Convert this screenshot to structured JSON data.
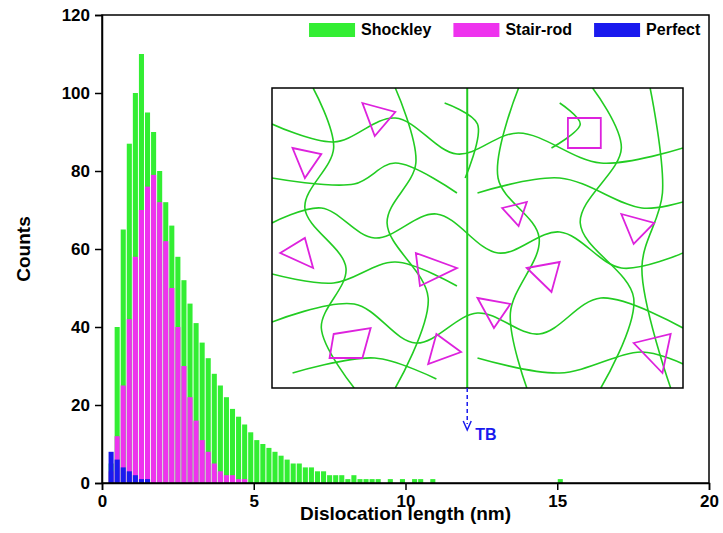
{
  "chart_data": {
    "type": "histogram",
    "x_label": "Dislocation length (nm)",
    "y_label": "Counts",
    "bins": [
      0,
      0.2,
      0.4,
      0.6,
      0.8,
      1,
      1.2,
      1.4,
      1.6,
      1.8,
      2,
      2.2,
      2.4,
      2.6,
      2.8,
      3,
      3.2,
      3.4,
      3.6,
      3.8,
      4,
      4.2,
      4.4,
      4.6,
      4.8,
      5,
      5.2,
      5.4,
      5.6,
      5.8,
      6,
      6.2,
      6.4,
      6.6,
      6.8,
      7,
      7.2,
      7.4,
      7.6,
      7.8,
      8,
      8.2,
      8.4,
      8.6,
      8.8,
      9,
      9.2,
      9.4,
      9.6,
      9.8,
      10,
      10.2,
      10.4,
      10.6,
      10.8,
      11,
      11.2,
      11.4,
      11.6,
      11.8,
      12,
      12.2,
      12.4,
      12.6,
      12.8,
      13,
      13.2,
      13.4,
      13.6,
      13.8,
      14,
      14.2,
      14.4,
      14.6,
      14.8,
      15,
      15.2,
      15.4
    ],
    "series": [
      {
        "name": "Shockley",
        "color": "#33ee33",
        "values": [
          0,
          5,
          40,
          65,
          87,
          100,
          110,
          95,
          90,
          80,
          72,
          66,
          58,
          52,
          46,
          41,
          36,
          32,
          28,
          25,
          22,
          19,
          17,
          15,
          13,
          11,
          10,
          9,
          8,
          7,
          6,
          5,
          5,
          4,
          4,
          3,
          3,
          2,
          2,
          2,
          1,
          2,
          1,
          1,
          1,
          1,
          0,
          1,
          0,
          1,
          0,
          1,
          1,
          0,
          1,
          0,
          0,
          0,
          0,
          0,
          0,
          0,
          0,
          0,
          0,
          0,
          0,
          0,
          0,
          0,
          0,
          0,
          0,
          0,
          0,
          1,
          0
        ]
      },
      {
        "name": "Stair-rod",
        "color": "#ee33ee",
        "values": [
          0,
          3,
          12,
          25,
          42,
          58,
          70,
          76,
          79,
          72,
          62,
          50,
          40,
          30,
          22,
          16,
          11,
          8,
          5,
          3,
          2,
          2,
          1,
          1,
          0,
          0,
          0,
          0,
          0,
          0,
          0,
          0,
          0,
          0,
          0,
          0,
          0,
          0,
          0,
          0,
          0,
          0,
          0,
          0,
          0,
          0,
          0,
          0,
          0,
          0,
          0,
          0,
          0,
          0,
          0,
          0,
          0,
          0,
          0,
          0,
          0,
          0,
          0,
          0,
          0,
          0,
          0,
          0,
          0,
          0,
          0,
          0,
          0,
          0,
          0,
          0,
          0
        ]
      },
      {
        "name": "Perfect",
        "color": "#1a1aee",
        "values": [
          0,
          8,
          6,
          4,
          3,
          2,
          1,
          1,
          0,
          0,
          0,
          0,
          0,
          0,
          0,
          0,
          0,
          0,
          0,
          0,
          0,
          0,
          0,
          0,
          0,
          0,
          0,
          0,
          0,
          0,
          0,
          0,
          0,
          0,
          0,
          0,
          0,
          0,
          0,
          0,
          0,
          0,
          0,
          0,
          0,
          0,
          0,
          0,
          0,
          0,
          0,
          0,
          0,
          0,
          0,
          0,
          0,
          0,
          0,
          0,
          0,
          0,
          0,
          0,
          0,
          0,
          0,
          0,
          0,
          0,
          0,
          0,
          0,
          0,
          0,
          0,
          0
        ]
      }
    ],
    "xlim": [
      0,
      20
    ],
    "ylim": [
      0,
      120
    ],
    "xticks": [
      0,
      5,
      10,
      15,
      20
    ],
    "yticks": [
      0,
      20,
      40,
      60,
      80,
      100,
      120
    ],
    "legend": "upper right",
    "annotation": "TB"
  }
}
